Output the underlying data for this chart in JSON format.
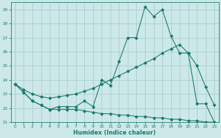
{
  "xlabel": "Humidex (Indice chaleur)",
  "background_color": "#cce8e8",
  "grid_color": "#aacccc",
  "line_color": "#1a7a6a",
  "xlim": [
    -0.5,
    23.5
  ],
  "ylim": [
    21.0,
    29.5
  ],
  "yticks": [
    21,
    22,
    23,
    24,
    25,
    26,
    27,
    28,
    29
  ],
  "xticks": [
    0,
    1,
    2,
    3,
    4,
    5,
    6,
    7,
    8,
    9,
    10,
    11,
    12,
    13,
    14,
    15,
    16,
    17,
    18,
    19,
    20,
    21,
    22,
    23
  ],
  "line1_x": [
    0,
    1,
    2,
    3,
    4,
    5,
    6,
    7,
    8,
    9,
    10,
    11,
    12,
    13,
    14,
    15,
    16,
    17,
    18,
    19,
    20,
    21,
    22,
    23
  ],
  "line1_y": [
    23.7,
    23.1,
    22.5,
    22.2,
    21.9,
    22.1,
    22.1,
    22.1,
    22.5,
    22.1,
    24.0,
    23.6,
    25.3,
    27.0,
    27.0,
    29.2,
    28.5,
    29.0,
    27.1,
    25.9,
    25.9,
    22.3,
    22.3,
    21.0
  ],
  "line2_x": [
    0,
    1,
    2,
    3,
    4,
    5,
    6,
    7,
    8,
    9,
    10,
    11,
    12,
    13,
    14,
    15,
    16,
    17,
    18,
    19,
    20,
    21,
    22,
    23
  ],
  "line2_y": [
    23.7,
    23.3,
    23.0,
    22.8,
    22.7,
    22.8,
    22.9,
    23.0,
    23.2,
    23.4,
    23.7,
    24.0,
    24.3,
    24.6,
    24.9,
    25.2,
    25.5,
    25.9,
    26.2,
    26.5,
    25.9,
    25.0,
    23.5,
    22.2
  ],
  "line3_x": [
    0,
    1,
    2,
    3,
    4,
    5,
    6,
    7,
    8,
    9,
    10,
    11,
    12,
    13,
    14,
    15,
    16,
    17,
    18,
    19,
    20,
    21,
    22,
    23
  ],
  "line3_y": [
    23.7,
    23.1,
    22.5,
    22.2,
    21.9,
    21.9,
    21.9,
    21.9,
    21.8,
    21.7,
    21.6,
    21.6,
    21.5,
    21.5,
    21.4,
    21.4,
    21.3,
    21.3,
    21.2,
    21.2,
    21.1,
    21.1,
    21.0,
    21.0
  ]
}
